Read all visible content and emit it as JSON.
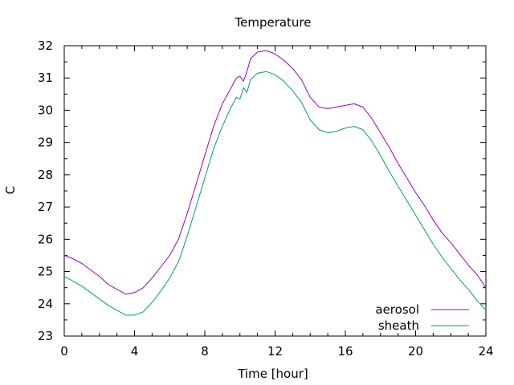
{
  "chart_data": {
    "type": "line",
    "title": "Temperature",
    "xlabel": "Time [hour]",
    "ylabel": "C",
    "xlim": [
      0,
      24
    ],
    "ylim": [
      23,
      32
    ],
    "xticks": [
      0,
      4,
      8,
      12,
      16,
      20,
      24
    ],
    "yticks": [
      23,
      24,
      25,
      26,
      27,
      28,
      29,
      30,
      31,
      32
    ],
    "grid": false,
    "legend_position": "bottom-right",
    "series": [
      {
        "name": "aerosol",
        "color": "#9400d3",
        "x": [
          0,
          0.5,
          1,
          1.5,
          2,
          2.5,
          3,
          3.5,
          4,
          4.5,
          5,
          5.5,
          6,
          6.5,
          7,
          7.5,
          8,
          8.5,
          9,
          9.5,
          9.8,
          10,
          10.2,
          10.4,
          10.6,
          11,
          11.5,
          12,
          12.5,
          13,
          13.5,
          14,
          14.5,
          15,
          15.5,
          16,
          16.5,
          17,
          17.5,
          18,
          18.5,
          19,
          19.5,
          20,
          20.5,
          21,
          21.5,
          22,
          22.5,
          23,
          23.5,
          24
        ],
        "y": [
          25.5,
          25.4,
          25.25,
          25.05,
          24.85,
          24.6,
          24.45,
          24.3,
          24.35,
          24.5,
          24.8,
          25.15,
          25.5,
          26.0,
          26.8,
          27.7,
          28.6,
          29.5,
          30.2,
          30.7,
          31.0,
          31.05,
          30.9,
          31.2,
          31.6,
          31.8,
          31.85,
          31.75,
          31.55,
          31.3,
          30.95,
          30.4,
          30.1,
          30.05,
          30.1,
          30.15,
          30.2,
          30.1,
          29.75,
          29.3,
          28.85,
          28.35,
          27.9,
          27.45,
          27.05,
          26.6,
          26.2,
          25.9,
          25.55,
          25.2,
          24.9,
          24.5
        ]
      },
      {
        "name": "sheath",
        "color": "#009e73",
        "x": [
          0,
          0.5,
          1,
          1.5,
          2,
          2.5,
          3,
          3.5,
          4,
          4.5,
          5,
          5.5,
          6,
          6.5,
          7,
          7.5,
          8,
          8.5,
          9,
          9.5,
          9.8,
          10,
          10.2,
          10.4,
          10.6,
          11,
          11.5,
          12,
          12.5,
          13,
          13.5,
          14,
          14.5,
          15,
          15.5,
          16,
          16.5,
          17,
          17.5,
          18,
          18.5,
          19,
          19.5,
          20,
          20.5,
          21,
          21.5,
          22,
          22.5,
          23,
          23.5,
          24
        ],
        "y": [
          24.85,
          24.7,
          24.55,
          24.35,
          24.15,
          23.95,
          23.8,
          23.65,
          23.65,
          23.75,
          24.05,
          24.4,
          24.8,
          25.3,
          26.1,
          27.0,
          27.9,
          28.8,
          29.5,
          30.1,
          30.4,
          30.35,
          30.7,
          30.55,
          30.95,
          31.15,
          31.2,
          31.1,
          30.9,
          30.6,
          30.25,
          29.7,
          29.4,
          29.3,
          29.35,
          29.45,
          29.5,
          29.4,
          29.05,
          28.6,
          28.1,
          27.65,
          27.2,
          26.75,
          26.3,
          25.85,
          25.45,
          25.1,
          24.75,
          24.45,
          24.1,
          23.8
        ]
      }
    ]
  }
}
